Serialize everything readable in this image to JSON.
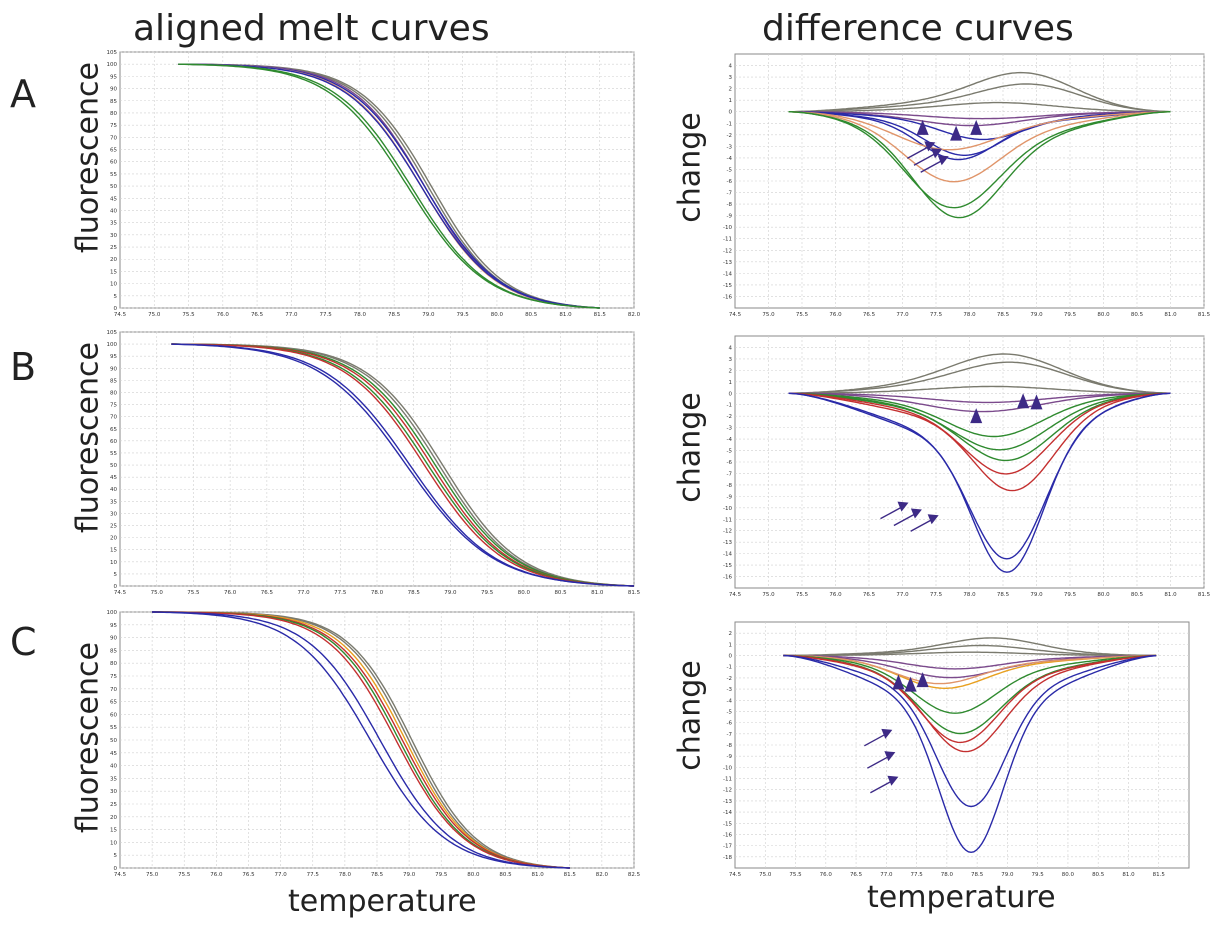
{
  "headings": {
    "left": "aligned melt curves",
    "right": "difference curves"
  },
  "rows": [
    "A",
    "B",
    "C"
  ],
  "axis_labels": {
    "melt_y": "fluorescence",
    "diff_y": "change",
    "x": "temperature"
  },
  "colors": {
    "grey": "#7a7a6e",
    "purple": "#7b4a8c",
    "blue": "#2a2aa8",
    "orange": "#e0956a",
    "green": "#2f8a2f",
    "red": "#c43030",
    "yellow": "#e8a020",
    "marker": "#3d2a86"
  },
  "chart_data": [
    {
      "id": "A-melt",
      "type": "line",
      "title": "",
      "xlabel": "temperature",
      "ylabel": "fluorescence",
      "x_ticks": [
        "74.5",
        "75.0",
        "75.5",
        "76.0",
        "76.5",
        "77.0",
        "77.5",
        "78.0",
        "78.5",
        "79.0",
        "79.5",
        "80.0",
        "80.5",
        "81.0",
        "81.5",
        "82.0"
      ],
      "y_ticks": [
        "0",
        "5",
        "10",
        "15",
        "20",
        "25",
        "30",
        "35",
        "40",
        "45",
        "50",
        "55",
        "60",
        "65",
        "70",
        "75",
        "80",
        "85",
        "90",
        "95",
        "100",
        "105"
      ],
      "xlim": [
        74.5,
        82.0
      ],
      "ylim": [
        0,
        105
      ],
      "series": [
        {
          "color": "grey",
          "mid": 79.05,
          "k": 0.52
        },
        {
          "color": "grey",
          "mid": 79.0,
          "k": 0.52
        },
        {
          "color": "purple",
          "mid": 78.95,
          "k": 0.52
        },
        {
          "color": "blue",
          "mid": 78.95,
          "k": 0.54
        },
        {
          "color": "orange",
          "mid": 78.9,
          "k": 0.54
        },
        {
          "color": "blue",
          "mid": 78.9,
          "k": 0.55
        },
        {
          "color": "green",
          "mid": 78.75,
          "k": 0.56
        },
        {
          "color": "green",
          "mid": 78.7,
          "k": 0.57
        }
      ]
    },
    {
      "id": "A-diff",
      "type": "line",
      "title": "",
      "xlabel": "temperature",
      "ylabel": "change",
      "x_ticks": [
        "74.5",
        "75.0",
        "75.5",
        "76.0",
        "76.5",
        "77.0",
        "77.5",
        "78.0",
        "78.5",
        "79.0",
        "79.5",
        "80.0",
        "80.5",
        "81.0",
        "81.5"
      ],
      "y_ticks": [
        "4",
        "3",
        "2",
        "1",
        "0",
        "-1",
        "-2",
        "-3",
        "-4",
        "-5",
        "-6",
        "-7",
        "-8",
        "-9",
        "-10",
        "-11",
        "-12",
        "-13",
        "-14",
        "-15",
        "-16"
      ],
      "xlim": [
        74.5,
        81.5
      ],
      "ylim": [
        -17,
        5
      ],
      "series": [
        {
          "color": "grey",
          "amp": 3.6,
          "c": 78.9,
          "w": 1.1
        },
        {
          "color": "grey",
          "amp": 2.6,
          "c": 79.0,
          "w": 1.1
        },
        {
          "color": "grey",
          "amp": 0.8,
          "c": 78.5,
          "w": 1.2
        },
        {
          "color": "purple",
          "amp": -0.6,
          "c": 78.2,
          "w": 1.2
        },
        {
          "color": "purple",
          "amp": -1.2,
          "c": 78.0,
          "w": 1.1
        },
        {
          "color": "blue",
          "amp": -3.8,
          "c": 77.9,
          "w": 0.8
        },
        {
          "color": "blue",
          "amp": -4.2,
          "c": 77.8,
          "w": 0.8
        },
        {
          "color": "blue",
          "amp": -2.4,
          "c": 78.2,
          "w": 0.9
        },
        {
          "color": "orange",
          "amp": -3.4,
          "c": 77.6,
          "w": 1.1
        },
        {
          "color": "orange",
          "amp": -6.2,
          "c": 77.7,
          "w": 1.0
        },
        {
          "color": "green",
          "amp": -8.5,
          "c": 77.7,
          "w": 1.0
        },
        {
          "color": "green",
          "amp": -9.3,
          "c": 77.8,
          "w": 0.95
        }
      ],
      "markers": {
        "triangles": [
          [
            77.3,
            -1.4
          ],
          [
            77.8,
            -1.9
          ],
          [
            78.1,
            -1.4
          ]
        ],
        "arrows": [
          [
            77.4,
            -3.0
          ],
          [
            77.5,
            -3.6
          ],
          [
            77.6,
            -4.2
          ]
        ]
      }
    },
    {
      "id": "B-melt",
      "type": "line",
      "title": "",
      "xlabel": "temperature",
      "ylabel": "fluorescence",
      "x_ticks": [
        "74.5",
        "75.0",
        "75.5",
        "76.0",
        "76.5",
        "77.0",
        "77.5",
        "78.0",
        "78.5",
        "79.0",
        "79.5",
        "80.0",
        "80.5",
        "81.0",
        "81.5"
      ],
      "y_ticks": [
        "0",
        "5",
        "10",
        "15",
        "20",
        "25",
        "30",
        "35",
        "40",
        "45",
        "50",
        "55",
        "60",
        "65",
        "70",
        "75",
        "80",
        "85",
        "90",
        "95",
        "100",
        "105"
      ],
      "xlim": [
        74.5,
        81.5
      ],
      "ylim": [
        0,
        105
      ],
      "series": [
        {
          "color": "grey",
          "mid": 78.9,
          "k": 0.52
        },
        {
          "color": "grey",
          "mid": 78.85,
          "k": 0.52
        },
        {
          "color": "green",
          "mid": 78.8,
          "k": 0.53
        },
        {
          "color": "red",
          "mid": 78.75,
          "k": 0.53
        },
        {
          "color": "green",
          "mid": 78.7,
          "k": 0.54
        },
        {
          "color": "red",
          "mid": 78.65,
          "k": 0.54
        },
        {
          "color": "blue",
          "mid": 78.45,
          "k": 0.58
        },
        {
          "color": "blue",
          "mid": 78.4,
          "k": 0.59
        }
      ]
    },
    {
      "id": "B-diff",
      "type": "line",
      "title": "",
      "xlabel": "temperature",
      "ylabel": "change",
      "x_ticks": [
        "74.5",
        "75.0",
        "75.5",
        "76.0",
        "76.5",
        "77.0",
        "77.5",
        "78.0",
        "78.5",
        "79.0",
        "79.5",
        "80.0",
        "80.5",
        "81.0",
        "81.5"
      ],
      "y_ticks": [
        "4",
        "3",
        "2",
        "1",
        "0",
        "-1",
        "-2",
        "-3",
        "-4",
        "-5",
        "-6",
        "-7",
        "-8",
        "-9",
        "-10",
        "-11",
        "-12",
        "-13",
        "-14",
        "-15",
        "-16"
      ],
      "xlim": [
        74.5,
        81.5
      ],
      "ylim": [
        -17,
        5
      ],
      "series": [
        {
          "color": "grey",
          "amp": 3.5,
          "c": 78.6,
          "w": 1.2
        },
        {
          "color": "grey",
          "amp": 2.8,
          "c": 78.7,
          "w": 1.2
        },
        {
          "color": "grey",
          "amp": 0.6,
          "c": 78.4,
          "w": 1.3
        },
        {
          "color": "purple",
          "amp": -0.8,
          "c": 78.3,
          "w": 1.2
        },
        {
          "color": "purple",
          "amp": -1.6,
          "c": 78.2,
          "w": 1.2
        },
        {
          "color": "green",
          "amp": -3.8,
          "c": 78.4,
          "w": 1.0
        },
        {
          "color": "green",
          "amp": -5.0,
          "c": 78.5,
          "w": 1.0
        },
        {
          "color": "green",
          "amp": -6.0,
          "c": 78.6,
          "w": 0.95
        },
        {
          "color": "red",
          "amp": -7.2,
          "c": 78.6,
          "w": 0.9
        },
        {
          "color": "red",
          "amp": -8.8,
          "c": 78.7,
          "w": 0.85
        },
        {
          "color": "blue",
          "amp": -14.8,
          "c": 78.6,
          "w": 0.8
        },
        {
          "color": "blue",
          "amp": -16.0,
          "c": 78.6,
          "w": 0.75
        }
      ],
      "markers": {
        "triangles": [
          [
            78.1,
            -2.0
          ],
          [
            78.8,
            -0.7
          ],
          [
            79.0,
            -0.8
          ]
        ],
        "arrows": [
          [
            77.0,
            -9.9
          ],
          [
            77.2,
            -10.5
          ],
          [
            77.45,
            -11.0
          ]
        ]
      }
    },
    {
      "id": "C-melt",
      "type": "line",
      "title": "",
      "xlabel": "temperature",
      "ylabel": "fluorescence",
      "x_ticks": [
        "74.5",
        "75.0",
        "75.5",
        "76.0",
        "76.5",
        "77.0",
        "77.5",
        "78.0",
        "78.5",
        "79.0",
        "79.5",
        "80.0",
        "80.5",
        "81.0",
        "81.5",
        "82.0",
        "82.5"
      ],
      "y_ticks": [
        "0",
        "5",
        "10",
        "15",
        "20",
        "25",
        "30",
        "35",
        "40",
        "45",
        "50",
        "55",
        "60",
        "65",
        "70",
        "75",
        "80",
        "85",
        "90",
        "95",
        "100"
      ],
      "xlim": [
        74.5,
        82.5
      ],
      "ylim": [
        0,
        100
      ],
      "series": [
        {
          "color": "grey",
          "mid": 79.05,
          "k": 0.5
        },
        {
          "color": "grey",
          "mid": 79.0,
          "k": 0.5
        },
        {
          "color": "yellow",
          "mid": 78.95,
          "k": 0.51
        },
        {
          "color": "red",
          "mid": 78.9,
          "k": 0.52
        },
        {
          "color": "green",
          "mid": 78.85,
          "k": 0.52
        },
        {
          "color": "red",
          "mid": 78.8,
          "k": 0.53
        },
        {
          "color": "blue",
          "mid": 78.55,
          "k": 0.56
        },
        {
          "color": "blue",
          "mid": 78.4,
          "k": 0.58
        }
      ]
    },
    {
      "id": "C-diff",
      "type": "line",
      "title": "",
      "xlabel": "temperature",
      "ylabel": "change",
      "x_ticks": [
        "74.5",
        "75.0",
        "75.5",
        "76.0",
        "76.5",
        "77.0",
        "77.5",
        "78.0",
        "78.5",
        "79.0",
        "79.5",
        "80.0",
        "80.5",
        "81.0",
        "81.5"
      ],
      "y_ticks": [
        "2",
        "1",
        "0",
        "-1",
        "-2",
        "-3",
        "-4",
        "-5",
        "-6",
        "-7",
        "-8",
        "-9",
        "-10",
        "-11",
        "-12",
        "-13",
        "-14",
        "-15",
        "-16",
        "-17",
        "-18"
      ],
      "xlim": [
        74.5,
        82.0
      ],
      "ylim": [
        -19,
        3
      ],
      "series": [
        {
          "color": "grey",
          "amp": 1.6,
          "c": 78.8,
          "w": 1.1
        },
        {
          "color": "grey",
          "amp": 0.9,
          "c": 78.6,
          "w": 1.1
        },
        {
          "color": "grey",
          "amp": 0.3,
          "c": 78.4,
          "w": 1.2
        },
        {
          "color": "purple",
          "amp": -1.2,
          "c": 78.1,
          "w": 1.1
        },
        {
          "color": "purple",
          "amp": -2.0,
          "c": 78.0,
          "w": 1.1
        },
        {
          "color": "yellow",
          "amp": -3.0,
          "c": 77.9,
          "w": 1.0
        },
        {
          "color": "orange",
          "amp": -2.6,
          "c": 77.8,
          "w": 1.0
        },
        {
          "color": "green",
          "amp": -5.2,
          "c": 78.1,
          "w": 0.95
        },
        {
          "color": "green",
          "amp": -7.0,
          "c": 78.2,
          "w": 0.95
        },
        {
          "color": "red",
          "amp": -7.8,
          "c": 78.2,
          "w": 0.9
        },
        {
          "color": "red",
          "amp": -8.6,
          "c": 78.3,
          "w": 0.9
        },
        {
          "color": "blue",
          "amp": -13.5,
          "c": 78.4,
          "w": 0.8
        },
        {
          "color": "blue",
          "amp": -17.6,
          "c": 78.4,
          "w": 0.75
        }
      ],
      "markers": {
        "triangles": [
          [
            77.2,
            -2.4
          ],
          [
            77.4,
            -2.6
          ],
          [
            77.6,
            -2.2
          ]
        ],
        "arrows": [
          [
            77.0,
            -7.0
          ],
          [
            77.05,
            -9.0
          ],
          [
            77.1,
            -11.2
          ]
        ]
      }
    }
  ]
}
